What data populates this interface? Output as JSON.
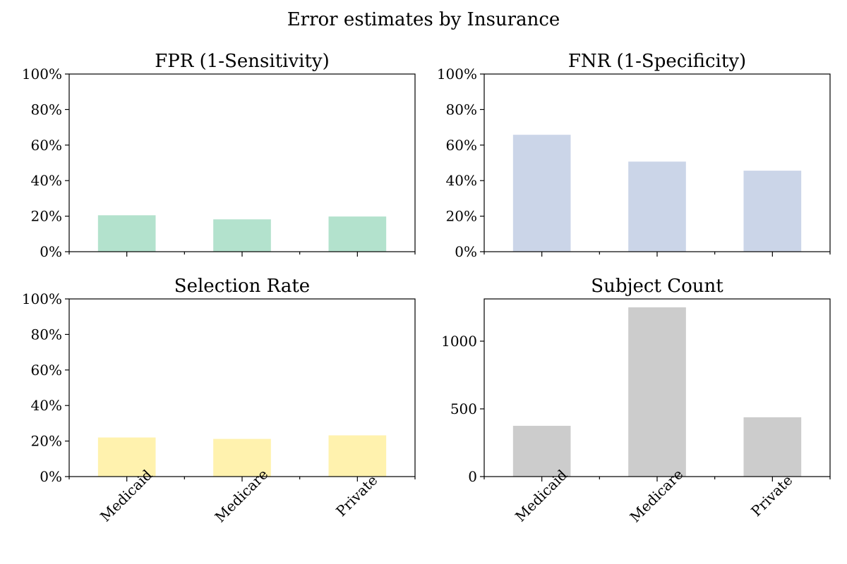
{
  "figure": {
    "title": "Error estimates by Insurance"
  },
  "chart_data": [
    {
      "type": "bar",
      "title": "FPR (1-Sensitivity)",
      "categories": [
        "Medicaid",
        "Medicare",
        "Private"
      ],
      "values": [
        0.205,
        0.182,
        0.198
      ],
      "ylim": [
        0,
        1
      ],
      "yticks": [
        0,
        0.2,
        0.4,
        0.6,
        0.8,
        1.0
      ],
      "ytick_labels": [
        "0%",
        "20%",
        "40%",
        "60%",
        "80%",
        "100%"
      ],
      "show_xtick_labels": false,
      "color": "#b3e2cd"
    },
    {
      "type": "bar",
      "title": "FNR (1-Specificity)",
      "categories": [
        "Medicaid",
        "Medicare",
        "Private"
      ],
      "values": [
        0.658,
        0.507,
        0.456
      ],
      "ylim": [
        0,
        1
      ],
      "yticks": [
        0,
        0.2,
        0.4,
        0.6,
        0.8,
        1.0
      ],
      "ytick_labels": [
        "0%",
        "20%",
        "40%",
        "60%",
        "80%",
        "100%"
      ],
      "show_xtick_labels": false,
      "color": "#cbd5e8"
    },
    {
      "type": "bar",
      "title": "Selection Rate",
      "categories": [
        "Medicaid",
        "Medicare",
        "Private"
      ],
      "values": [
        0.22,
        0.212,
        0.232
      ],
      "ylim": [
        0,
        1
      ],
      "yticks": [
        0,
        0.2,
        0.4,
        0.6,
        0.8,
        1.0
      ],
      "ytick_labels": [
        "0%",
        "20%",
        "40%",
        "60%",
        "80%",
        "100%"
      ],
      "show_xtick_labels": true,
      "color": "#fff2ae"
    },
    {
      "type": "bar",
      "title": "Subject Count",
      "categories": [
        "Medicaid",
        "Medicare",
        "Private"
      ],
      "values": [
        375,
        1250,
        438
      ],
      "ylim": [
        0,
        1312
      ],
      "yticks": [
        0,
        500,
        1000
      ],
      "ytick_labels": [
        "0",
        "500",
        "1000"
      ],
      "show_xtick_labels": true,
      "color": "#cccccc"
    }
  ]
}
